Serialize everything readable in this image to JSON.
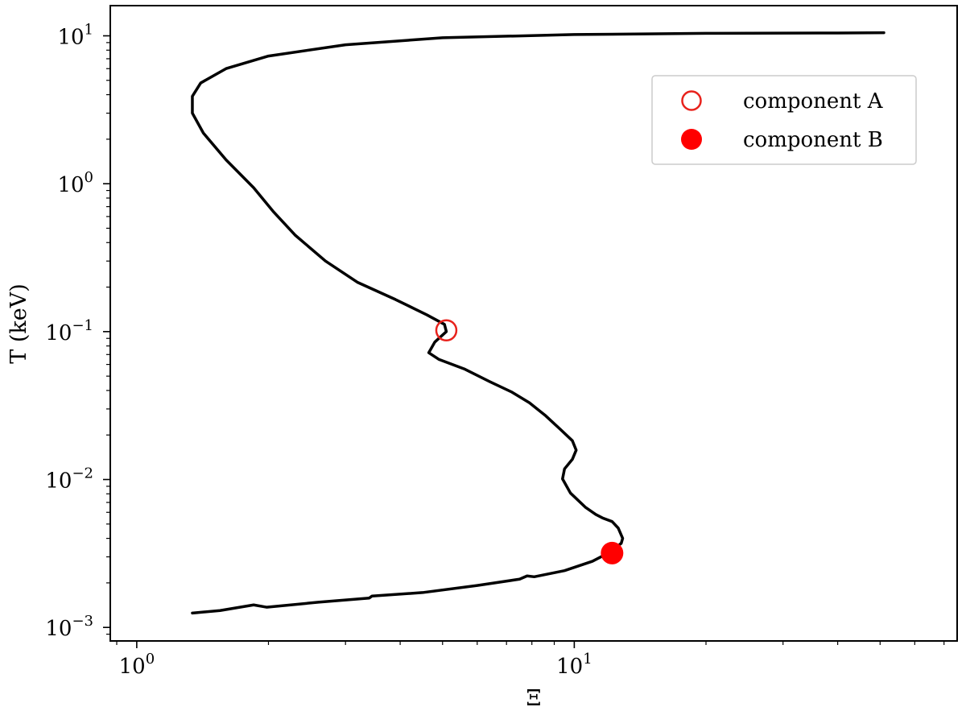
{
  "chart_data": {
    "type": "line",
    "xscale": "log",
    "yscale": "log",
    "xlabel": "Ξ",
    "ylabel": "T (keV)",
    "xlim": [
      0.87,
      75
    ],
    "ylim": [
      0.00081,
      16
    ],
    "grid": false,
    "legend_position": "top-right",
    "x_ticks": [
      {
        "value": 1,
        "label": "10^0",
        "base": "10",
        "exp": "0"
      },
      {
        "value": 10,
        "label": "10^1",
        "base": "10",
        "exp": "1"
      }
    ],
    "y_ticks": [
      {
        "value": 0.001,
        "label": "10^-3",
        "base": "10",
        "exp": "−3"
      },
      {
        "value": 0.01,
        "label": "10^-2",
        "base": "10",
        "exp": "−2"
      },
      {
        "value": 0.1,
        "label": "10^-1",
        "base": "10",
        "exp": "−1"
      },
      {
        "value": 1,
        "label": "10^0",
        "base": "10",
        "exp": "0"
      },
      {
        "value": 10,
        "label": "10^1",
        "base": "10",
        "exp": "1"
      }
    ],
    "series": [
      {
        "type": "line",
        "color": "#000000",
        "points": [
          [
            1.34,
            0.00125
          ],
          [
            1.55,
            0.0013
          ],
          [
            1.85,
            0.00142
          ],
          [
            1.98,
            0.00137
          ],
          [
            2.6,
            0.00148
          ],
          [
            3.4,
            0.00158
          ],
          [
            3.45,
            0.00163
          ],
          [
            4.5,
            0.00172
          ],
          [
            6.0,
            0.00192
          ],
          [
            7.5,
            0.00212
          ],
          [
            7.8,
            0.00223
          ],
          [
            8.1,
            0.0022
          ],
          [
            9.5,
            0.00242
          ],
          [
            11.0,
            0.0028
          ],
          [
            12.0,
            0.0032
          ],
          [
            12.8,
            0.0037
          ],
          [
            12.9,
            0.004
          ],
          [
            12.6,
            0.0047
          ],
          [
            12.2,
            0.0052
          ],
          [
            11.6,
            0.0055
          ],
          [
            11.2,
            0.0058
          ],
          [
            10.6,
            0.0065
          ],
          [
            9.8,
            0.0081
          ],
          [
            9.4,
            0.0101
          ],
          [
            9.5,
            0.0118
          ],
          [
            9.9,
            0.0137
          ],
          [
            10.1,
            0.0158
          ],
          [
            9.9,
            0.0183
          ],
          [
            9.3,
            0.0218
          ],
          [
            8.6,
            0.027
          ],
          [
            7.9,
            0.033
          ],
          [
            7.2,
            0.039
          ],
          [
            6.4,
            0.046
          ],
          [
            5.6,
            0.056
          ],
          [
            4.9,
            0.065
          ],
          [
            4.65,
            0.072
          ],
          [
            4.8,
            0.085
          ],
          [
            5.1,
            0.1
          ],
          [
            5.05,
            0.112
          ],
          [
            4.6,
            0.13
          ],
          [
            3.9,
            0.165
          ],
          [
            3.2,
            0.215
          ],
          [
            2.7,
            0.3
          ],
          [
            2.3,
            0.45
          ],
          [
            2.05,
            0.65
          ],
          [
            1.85,
            0.94
          ],
          [
            1.6,
            1.45
          ],
          [
            1.42,
            2.2
          ],
          [
            1.34,
            3.0
          ],
          [
            1.34,
            3.9
          ],
          [
            1.4,
            4.8
          ],
          [
            1.6,
            6.0
          ],
          [
            2.0,
            7.3
          ],
          [
            3.0,
            8.7
          ],
          [
            5.0,
            9.7
          ],
          [
            10.0,
            10.2
          ],
          [
            20.0,
            10.4
          ],
          [
            40.0,
            10.45
          ],
          [
            51.0,
            10.5
          ]
        ]
      }
    ],
    "markers": [
      {
        "name": "component A",
        "x": 5.1,
        "y": 0.102,
        "style": "open-circle",
        "color": "#e8221c"
      },
      {
        "name": "component B",
        "x": 12.2,
        "y": 0.00318,
        "style": "filled-circle",
        "color": "#ff0000"
      }
    ]
  }
}
